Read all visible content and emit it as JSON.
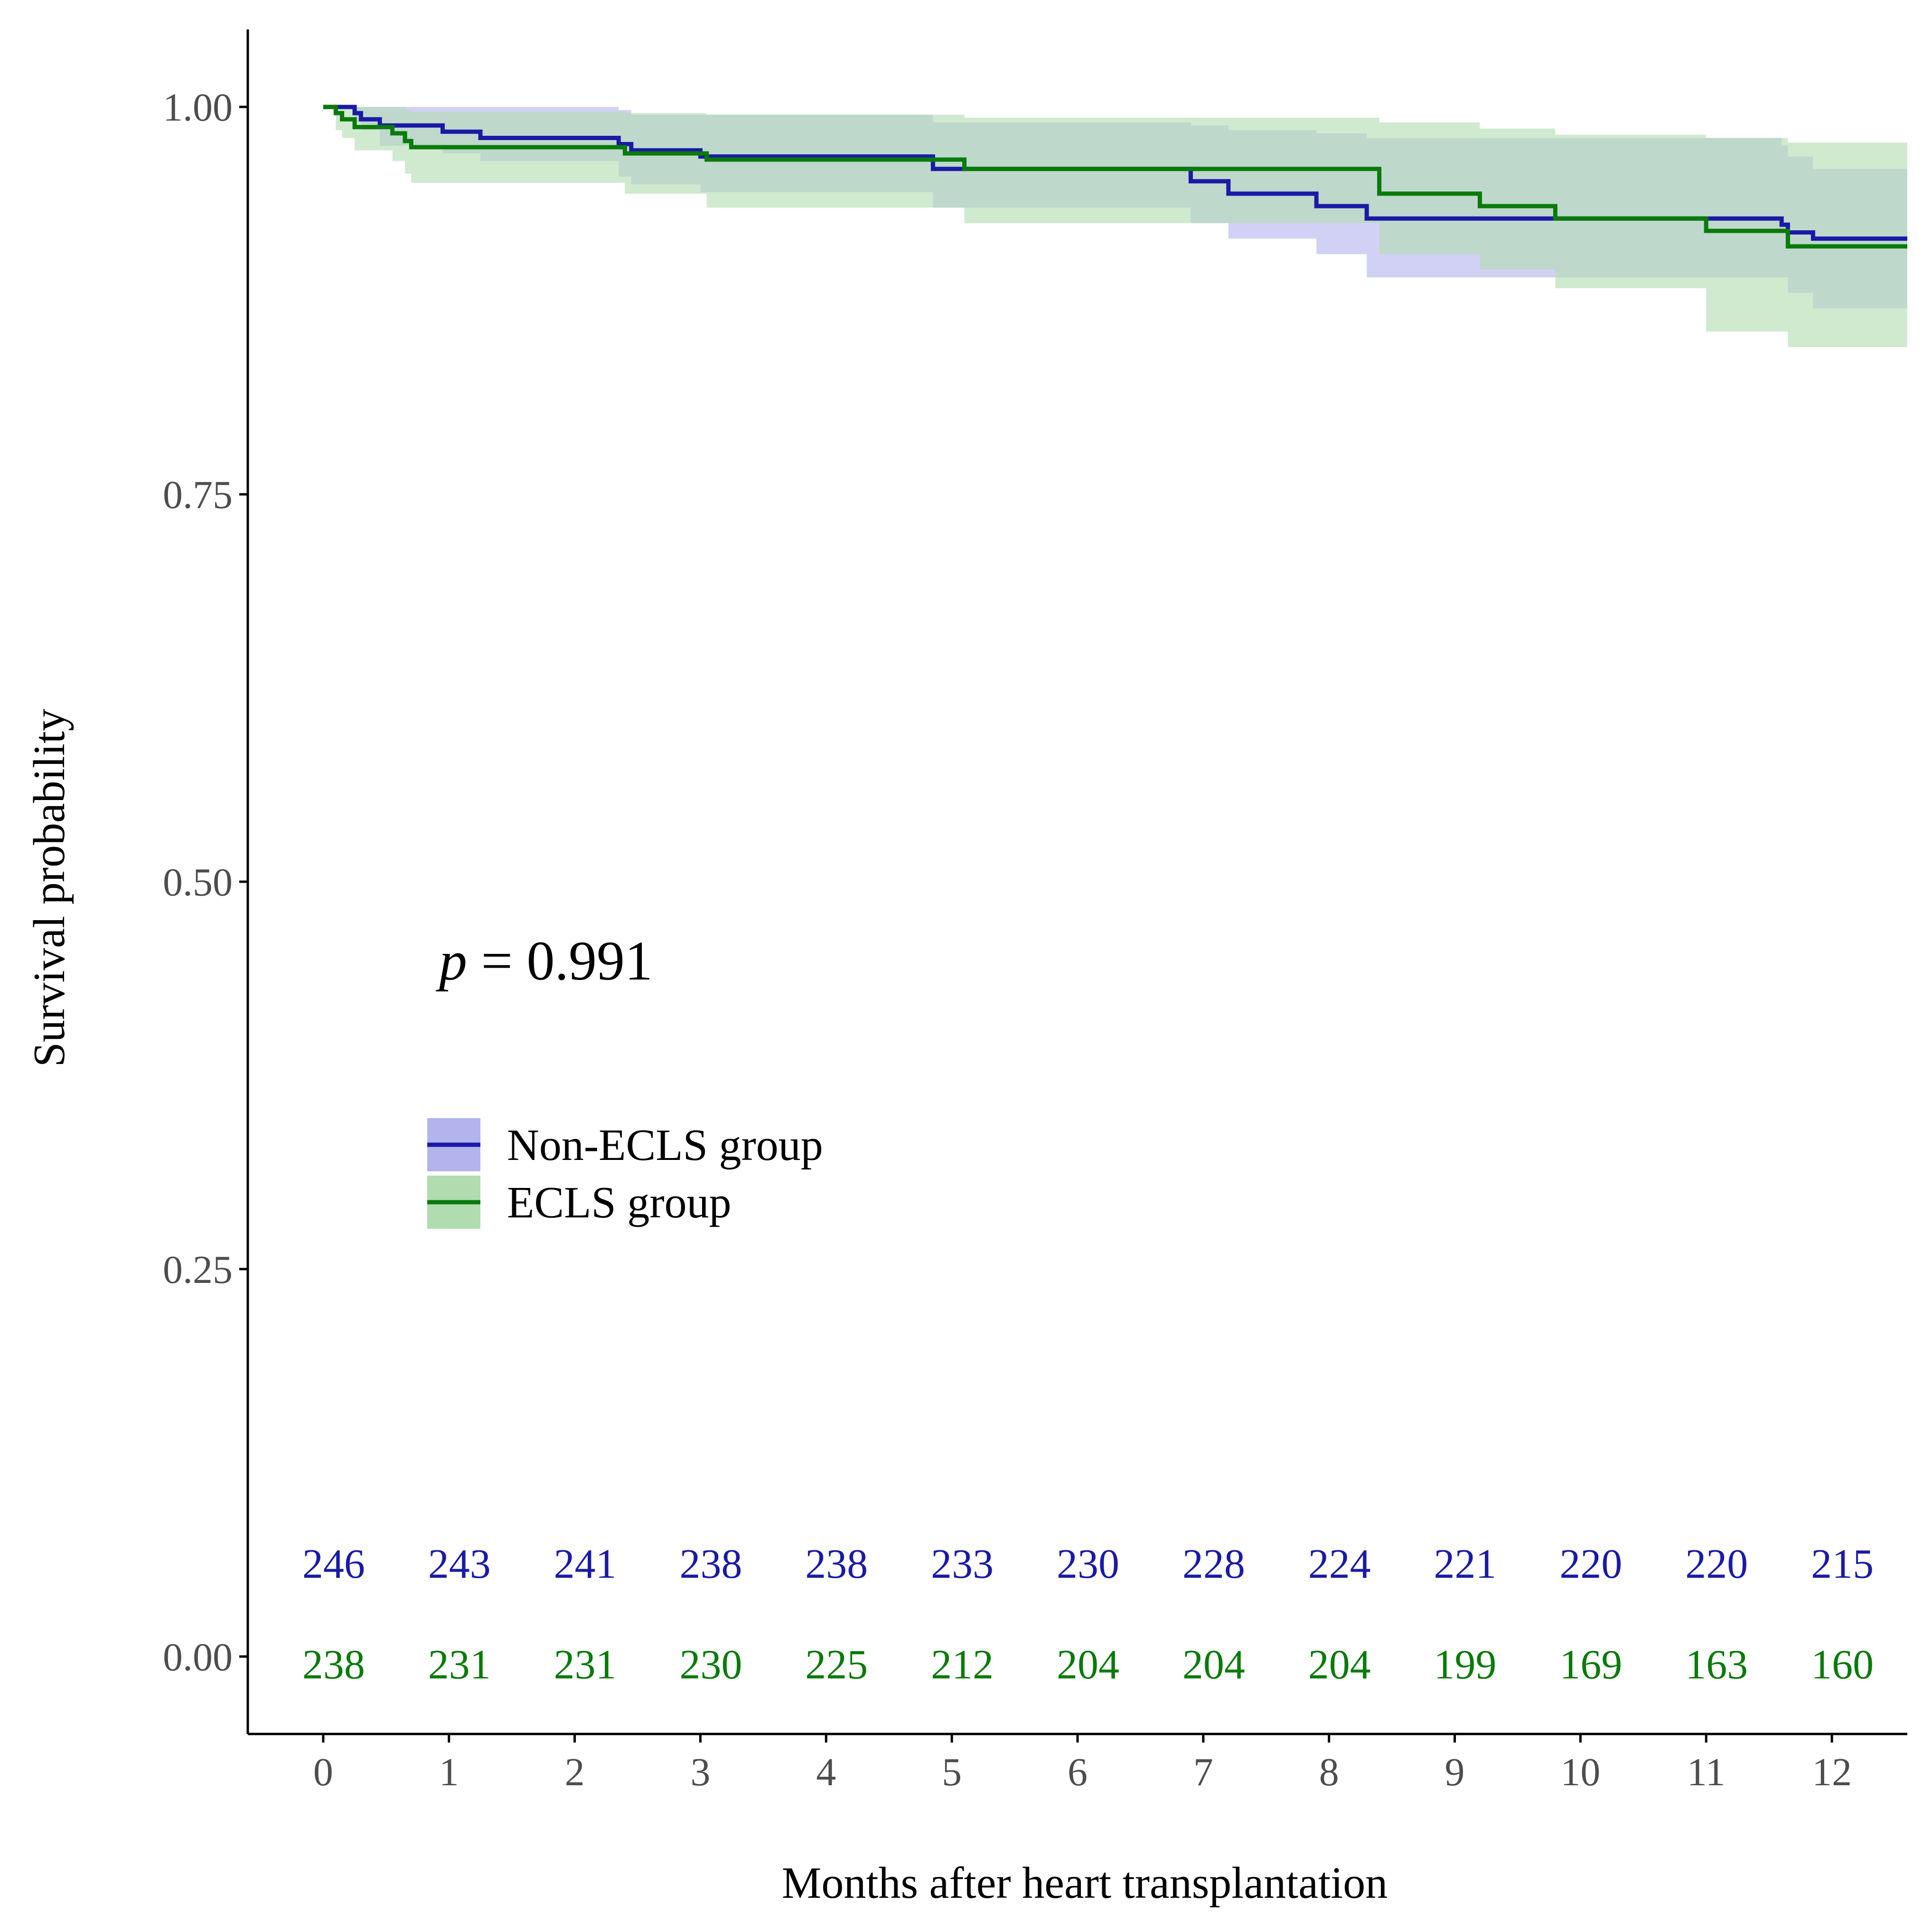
{
  "chart_data": {
    "type": "line",
    "subtype": "kaplan-meier survival curve",
    "xlabel": "Months after heart transplantation",
    "ylabel": "Survival probability",
    "xlim": [
      -0.6,
      12.6
    ],
    "ylim": [
      -0.05,
      1.05
    ],
    "x_ticks": [
      0,
      1,
      2,
      3,
      4,
      5,
      6,
      7,
      8,
      9,
      10,
      11,
      12
    ],
    "x_tick_labels": [
      "0",
      "1",
      "2",
      "3",
      "4",
      "5",
      "6",
      "7",
      "8",
      "9",
      "10",
      "11",
      "12"
    ],
    "y_ticks": [
      0,
      0.25,
      0.5,
      0.75,
      1.0
    ],
    "y_tick_labels": [
      "0.00",
      "0.25",
      "0.50",
      "0.75",
      "1.00"
    ],
    "annotation": {
      "p_label": "p",
      "p_text": " = 0.991"
    },
    "legend": [
      {
        "label": "Non-ECLS group",
        "line_color": "#1a1aa6",
        "fill_color": "#b3b3ee"
      },
      {
        "label": "ECLS group",
        "line_color": "#0a7a0a",
        "fill_color": "#b0dcb0"
      }
    ],
    "overlap_color": "#7fa6a2",
    "series": [
      {
        "name": "Non-ECLS group",
        "color": "#1a1aa6",
        "band_color": "#b3b3ee",
        "x": [
          0,
          0.25,
          0.3,
          0.45,
          0.95,
          1.25,
          2.35,
          2.45,
          3.0,
          4.85,
          6.9,
          7.2,
          7.9,
          8.3,
          11.6,
          11.65,
          11.85,
          12.6
        ],
        "y": [
          1.0,
          0.996,
          0.992,
          0.988,
          0.984,
          0.98,
          0.976,
          0.972,
          0.968,
          0.96,
          0.952,
          0.944,
          0.936,
          0.928,
          0.924,
          0.919,
          0.915,
          0.915
        ],
        "lower": [
          1.0,
          0.99,
          0.985,
          0.975,
          0.97,
          0.965,
          0.955,
          0.95,
          0.945,
          0.935,
          0.925,
          0.915,
          0.905,
          0.89,
          0.89,
          0.88,
          0.87,
          0.87
        ],
        "upper": [
          1.0,
          1.0,
          1.0,
          1.0,
          1.0,
          1.0,
          0.998,
          0.995,
          0.995,
          0.99,
          0.988,
          0.985,
          0.983,
          0.98,
          0.975,
          0.968,
          0.96,
          0.96
        ],
        "at_risk": [
          246,
          243,
          241,
          238,
          238,
          233,
          230,
          228,
          224,
          221,
          220,
          220,
          215
        ]
      },
      {
        "name": "ECLS group",
        "color": "#0a7a0a",
        "band_color": "#b0dcb0",
        "x": [
          0,
          0.1,
          0.15,
          0.25,
          0.55,
          0.65,
          0.7,
          2.4,
          3.05,
          5.1,
          8.4,
          9.2,
          9.8,
          11.0,
          11.65,
          12.6
        ],
        "y": [
          1.0,
          0.996,
          0.992,
          0.987,
          0.983,
          0.978,
          0.974,
          0.97,
          0.966,
          0.96,
          0.944,
          0.936,
          0.928,
          0.92,
          0.91,
          0.91
        ],
        "lower": [
          1.0,
          0.985,
          0.98,
          0.972,
          0.965,
          0.957,
          0.951,
          0.944,
          0.935,
          0.925,
          0.905,
          0.895,
          0.883,
          0.855,
          0.845,
          0.845
        ],
        "upper": [
          1.0,
          1.0,
          1.0,
          1.0,
          1.0,
          0.998,
          0.997,
          0.996,
          0.995,
          0.993,
          0.99,
          0.986,
          0.982,
          0.98,
          0.977,
          0.977
        ],
        "at_risk": [
          238,
          231,
          231,
          230,
          225,
          212,
          204,
          204,
          204,
          199,
          169,
          163,
          160
        ]
      }
    ],
    "risk_table_y": [
      0.06,
      -0.005
    ]
  }
}
